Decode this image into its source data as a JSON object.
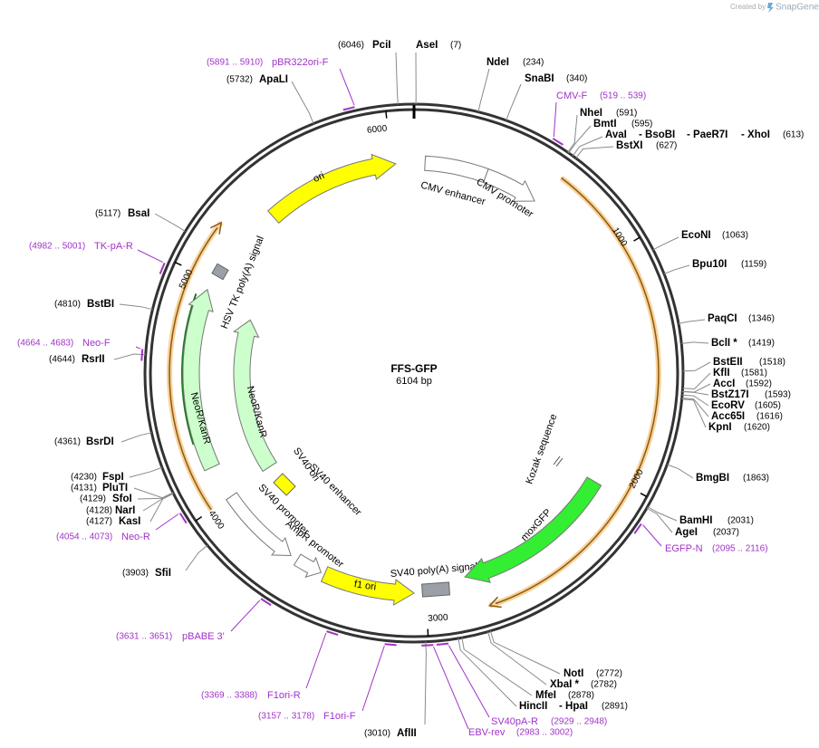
{
  "header": {
    "created_by": "Created by",
    "app": "SnapGene"
  },
  "plasmid": {
    "name": "FFS-GFP",
    "size": "6104 bp",
    "ticks": [
      "1000",
      "2000",
      "3000",
      "4000",
      "5000",
      "6000"
    ]
  },
  "sites": [
    {
      "names": [
        "PciI"
      ],
      "pos": "(6046)"
    },
    {
      "names": [
        "AseI"
      ],
      "pos": "(7)"
    },
    {
      "names": [
        "NdeI"
      ],
      "pos": "(234)"
    },
    {
      "names": [
        "SnaBI"
      ],
      "pos": "(340)"
    },
    {
      "names": [
        "NheI"
      ],
      "pos": "(591)"
    },
    {
      "names": [
        "BmtI"
      ],
      "pos": "(595)"
    },
    {
      "names": [
        "AvaI",
        "- BsoBI",
        "- PaeR7I",
        "- XhoI"
      ],
      "pos": "(613)"
    },
    {
      "names": [
        "BstXI"
      ],
      "pos": "(627)"
    },
    {
      "names": [
        "EcoNI"
      ],
      "pos": "(1063)"
    },
    {
      "names": [
        "Bpu10I"
      ],
      "pos": "(1159)"
    },
    {
      "names": [
        "PaqCI"
      ],
      "pos": "(1346)"
    },
    {
      "names": [
        "BclI *"
      ],
      "pos": "(1419)"
    },
    {
      "names": [
        "BstEII"
      ],
      "pos": "(1518)"
    },
    {
      "names": [
        "KflI"
      ],
      "pos": "(1581)"
    },
    {
      "names": [
        "AccI"
      ],
      "pos": "(1592)"
    },
    {
      "names": [
        "BstZ17I"
      ],
      "pos": "(1593)"
    },
    {
      "names": [
        "EcoRV"
      ],
      "pos": "(1605)"
    },
    {
      "names": [
        "Acc65I"
      ],
      "pos": "(1616)"
    },
    {
      "names": [
        "KpnI"
      ],
      "pos": "(1620)"
    },
    {
      "names": [
        "BmgBI"
      ],
      "pos": "(1863)"
    },
    {
      "names": [
        "BamHI"
      ],
      "pos": "(2031)"
    },
    {
      "names": [
        "AgeI"
      ],
      "pos": "(2037)"
    },
    {
      "names": [
        "NotI"
      ],
      "pos": "(2772)"
    },
    {
      "names": [
        "XbaI *"
      ],
      "pos": "(2782)"
    },
    {
      "names": [
        "MfeI"
      ],
      "pos": "(2878)"
    },
    {
      "names": [
        "HincII",
        "- HpaI"
      ],
      "pos": "(2891)"
    },
    {
      "names": [
        "AflII"
      ],
      "pos": "(3010)"
    },
    {
      "names": [
        "SfiI"
      ],
      "pos": "(3903)"
    },
    {
      "names": [
        "KasI"
      ],
      "pos": "(4127)"
    },
    {
      "names": [
        "NarI"
      ],
      "pos": "(4128)"
    },
    {
      "names": [
        "SfoI"
      ],
      "pos": "(4129)"
    },
    {
      "names": [
        "PluTI"
      ],
      "pos": "(4131)"
    },
    {
      "names": [
        "FspI"
      ],
      "pos": "(4230)"
    },
    {
      "names": [
        "BsrDI"
      ],
      "pos": "(4361)"
    },
    {
      "names": [
        "RsrII"
      ],
      "pos": "(4644)"
    },
    {
      "names": [
        "BstBI"
      ],
      "pos": "(4810)"
    },
    {
      "names": [
        "BsaI"
      ],
      "pos": "(5117)"
    },
    {
      "names": [
        "ApaLI"
      ],
      "pos": "(5732)"
    }
  ],
  "primers": [
    {
      "name": "pBR322ori-F",
      "range": "(5891 .. 5910)"
    },
    {
      "name": "CMV-F",
      "range": "(519 .. 539)"
    },
    {
      "name": "EGFP-N",
      "range": "(2095 .. 2116)"
    },
    {
      "name": "TK-pA-R",
      "range": "(4982 .. 5001)"
    },
    {
      "name": "Neo-F",
      "range": "(4664 .. 4683)"
    },
    {
      "name": "Neo-R",
      "range": "(4054 .. 4073)"
    },
    {
      "name": "pBABE 3'",
      "range": "(3631 .. 3651)"
    },
    {
      "name": "F1ori-R",
      "range": "(3369 .. 3388)"
    },
    {
      "name": "F1ori-F",
      "range": "(3157 .. 3178)"
    },
    {
      "name": "SV40pA-R",
      "range": "(2929 .. 2948)"
    },
    {
      "name": "EBV-rev",
      "range": "(2983 .. 3002)"
    }
  ],
  "features": [
    {
      "label": "ori"
    },
    {
      "label": "CMV enhancer"
    },
    {
      "label": "CMV promoter"
    },
    {
      "label": "HSV TK poly(A) signal"
    },
    {
      "label": "NeoR/KanR"
    },
    {
      "label": "NeoR/KanR"
    },
    {
      "label": "SV40 ori"
    },
    {
      "label": "SV40 enhancer"
    },
    {
      "label": "SV40 promoter"
    },
    {
      "label": "AmpR promoter"
    },
    {
      "label": "f1 ori"
    },
    {
      "label": "SV40 poly(A) signal"
    },
    {
      "label": "moxGFP"
    },
    {
      "label": "Kozak sequence"
    }
  ]
}
